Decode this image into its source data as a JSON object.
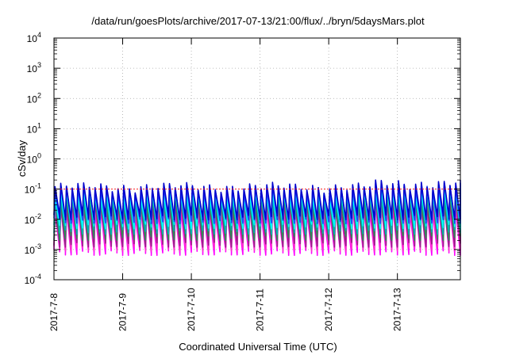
{
  "chart_data": {
    "type": "line",
    "title": "/data/run/goesPlots/archive/2017-07-13/21:00/flux/../bryn/5daysMars.plot",
    "xlabel": "Coordinated Universal Time (UTC)",
    "ylabel": "cSv/day",
    "y_scale": "log",
    "ylim": [
      0.0001,
      10000
    ],
    "y_ticks": [
      {
        "base": "10",
        "exp": "-4"
      },
      {
        "base": "10",
        "exp": "-3"
      },
      {
        "base": "10",
        "exp": "-2"
      },
      {
        "base": "10",
        "exp": "-1"
      },
      {
        "base": "10",
        "exp": "0"
      },
      {
        "base": "10",
        "exp": "1"
      },
      {
        "base": "10",
        "exp": "2"
      },
      {
        "base": "10",
        "exp": "3"
      },
      {
        "base": "10",
        "exp": "4"
      }
    ],
    "x_range": [
      "2017-07-08 00:00",
      "2017-07-13 22:00"
    ],
    "x_ticks": [
      "2017-7-8",
      "2017-7-9",
      "2017-7-10",
      "2017-7-11",
      "2017-7-12",
      "2017-7-13"
    ],
    "grid": true,
    "threshold_line": {
      "value": 0.1,
      "color": "#ff2020"
    },
    "cycle_hours": 2,
    "envelope": {
      "peak_range": [
        0.1,
        0.16
      ],
      "trough_range": [
        0.0007,
        0.0012
      ]
    },
    "series": [
      {
        "color": "#ff00ff",
        "peak": 0.02,
        "trough": 0.0008
      },
      {
        "color": "#ff33cc",
        "peak": 0.025,
        "trough": 0.0011
      },
      {
        "color": "#9a1f8a",
        "peak": 0.03,
        "trough": 0.0015
      },
      {
        "color": "#2e8b57",
        "peak": 0.045,
        "trough": 0.0025
      },
      {
        "color": "#00b3b3",
        "peak": 0.06,
        "trough": 0.004
      },
      {
        "color": "#00ffff",
        "peak": 0.075,
        "trough": 0.006
      },
      {
        "color": "#2040ff",
        "peak": 0.1,
        "trough": 0.009
      },
      {
        "color": "#0000cc",
        "peak": 0.12,
        "trough": 0.012
      }
    ]
  }
}
